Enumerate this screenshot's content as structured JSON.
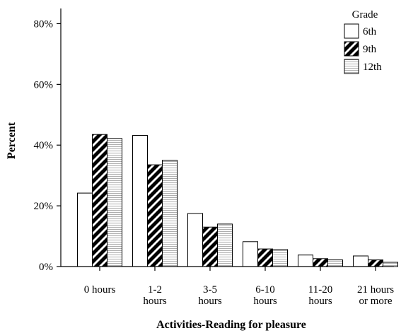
{
  "chart_data": {
    "type": "bar",
    "title": "",
    "xlabel": "Activities-Reading for pleasure",
    "ylabel": "Percent",
    "ylim": [
      0,
      85
    ],
    "yticks": [
      "0%",
      "20%",
      "40%",
      "60%",
      "80%"
    ],
    "ytick_values": [
      0,
      20,
      40,
      60,
      80
    ],
    "grid": false,
    "categories": [
      [
        "0 hours"
      ],
      [
        "1-2",
        "hours"
      ],
      [
        "3-5",
        "hours"
      ],
      [
        "6-10",
        "hours"
      ],
      [
        "11-20",
        "hours"
      ],
      [
        "21 hours",
        "or more"
      ]
    ],
    "legend": {
      "title": "Grade",
      "placement": "top-right"
    },
    "series": [
      {
        "name": "6th",
        "pattern": "white",
        "values": [
          24.2,
          43.2,
          17.5,
          8.2,
          3.8,
          3.5
        ]
      },
      {
        "name": "9th",
        "pattern": "diagonal",
        "values": [
          43.5,
          33.5,
          13.0,
          5.8,
          2.6,
          2.2
        ]
      },
      {
        "name": "12th",
        "pattern": "lines",
        "values": [
          42.2,
          35.0,
          14.0,
          5.6,
          2.2,
          1.4
        ]
      }
    ]
  }
}
